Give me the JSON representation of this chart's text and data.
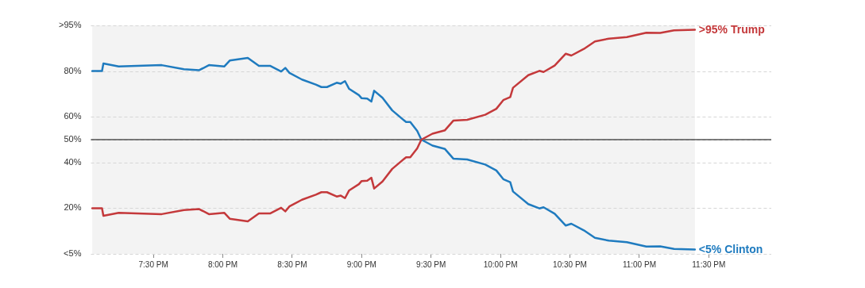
{
  "chart_data": {
    "type": "line",
    "x": [
      19.06,
      19.13,
      19.14,
      19.25,
      19.56,
      19.72,
      19.83,
      19.9,
      20.01,
      20.05,
      20.18,
      20.26,
      20.34,
      20.42,
      20.45,
      20.48,
      20.57,
      20.67,
      20.71,
      20.75,
      20.82,
      20.85,
      20.88,
      20.91,
      20.98,
      21.0,
      21.04,
      21.07,
      21.09,
      21.15,
      21.22,
      21.32,
      21.35,
      21.4,
      21.43,
      21.51,
      21.6,
      21.66,
      21.76,
      21.89,
      21.97,
      22.02,
      22.07,
      22.09,
      22.2,
      22.28,
      22.31,
      22.39,
      22.47,
      22.51,
      22.6,
      22.68,
      22.78,
      22.91,
      23.05,
      23.15,
      23.25,
      23.4
    ],
    "series": [
      {
        "name": ">95% Trump",
        "color": "#c4393b",
        "values": [
          20,
          20,
          16.7,
          18,
          17.4,
          19.2,
          19.6,
          17.4,
          18,
          15.4,
          14.2,
          17.7,
          17.7,
          20.2,
          18.6,
          20.8,
          23.7,
          25.9,
          27,
          27,
          25.1,
          25.5,
          24.4,
          27.8,
          30.5,
          31.9,
          32,
          33.3,
          28.6,
          31.7,
          37.2,
          42.3,
          42.3,
          46.2,
          50,
          52.6,
          54.1,
          58.3,
          58.7,
          60.9,
          63.5,
          67.3,
          68.6,
          72.7,
          78.2,
          80.1,
          79.6,
          82.4,
          87.6,
          86.8,
          89.7,
          93,
          94.2,
          94.9,
          96.8,
          96.7,
          97.8,
          98.1
        ]
      },
      {
        "name": "<5% Clinton",
        "color": "#1f7bbf",
        "values": [
          80,
          80,
          83.3,
          82,
          82.6,
          80.8,
          80.4,
          82.6,
          82,
          84.6,
          85.8,
          82.3,
          82.3,
          79.8,
          81.4,
          79.2,
          76.3,
          74.1,
          73,
          73,
          74.9,
          74.5,
          75.6,
          72.2,
          69.5,
          68.1,
          68,
          66.7,
          71.4,
          68.3,
          62.8,
          57.7,
          57.7,
          53.8,
          50,
          47.4,
          45.9,
          41.7,
          41.3,
          39.1,
          36.5,
          32.7,
          31.4,
          27.3,
          21.8,
          19.9,
          20.4,
          17.6,
          12.4,
          13.2,
          10.3,
          7,
          5.8,
          5.1,
          3.2,
          3.3,
          2.2,
          1.9
        ]
      }
    ],
    "xlim": [
      19.05,
      23.95
    ],
    "xticks": [
      {
        "value": 19.5,
        "label": "7:30 PM"
      },
      {
        "value": 20,
        "label": "8:00 PM"
      },
      {
        "value": 20.5,
        "label": "8:30 PM"
      },
      {
        "value": 21,
        "label": "9:00 PM"
      },
      {
        "value": 21.5,
        "label": "9:30 PM"
      },
      {
        "value": 22,
        "label": "10:00 PM"
      },
      {
        "value": 22.5,
        "label": "10:30 PM"
      },
      {
        "value": 23,
        "label": "11:00 PM"
      },
      {
        "value": 23.5,
        "label": "11:30 PM"
      }
    ],
    "ylim": [
      0,
      100
    ],
    "yticks": [
      {
        "value": 0,
        "label": "<5%"
      },
      {
        "value": 20,
        "label": "20%"
      },
      {
        "value": 40,
        "label": "40%"
      },
      {
        "value": 50,
        "label": "50%"
      },
      {
        "value": 60,
        "label": "60%"
      },
      {
        "value": 80,
        "label": "80%"
      },
      {
        "value": 100,
        "label": ">95%"
      }
    ],
    "grid": "y",
    "marker": "none",
    "line_style": "solid",
    "legend": false,
    "ref_lines": [
      {
        "axis": "y",
        "value": 50,
        "color": "#000000"
      }
    ],
    "bands": [
      {
        "axis": "x",
        "from": 19.06,
        "to": 23.4,
        "color": "#f3f3f3"
      }
    ]
  }
}
